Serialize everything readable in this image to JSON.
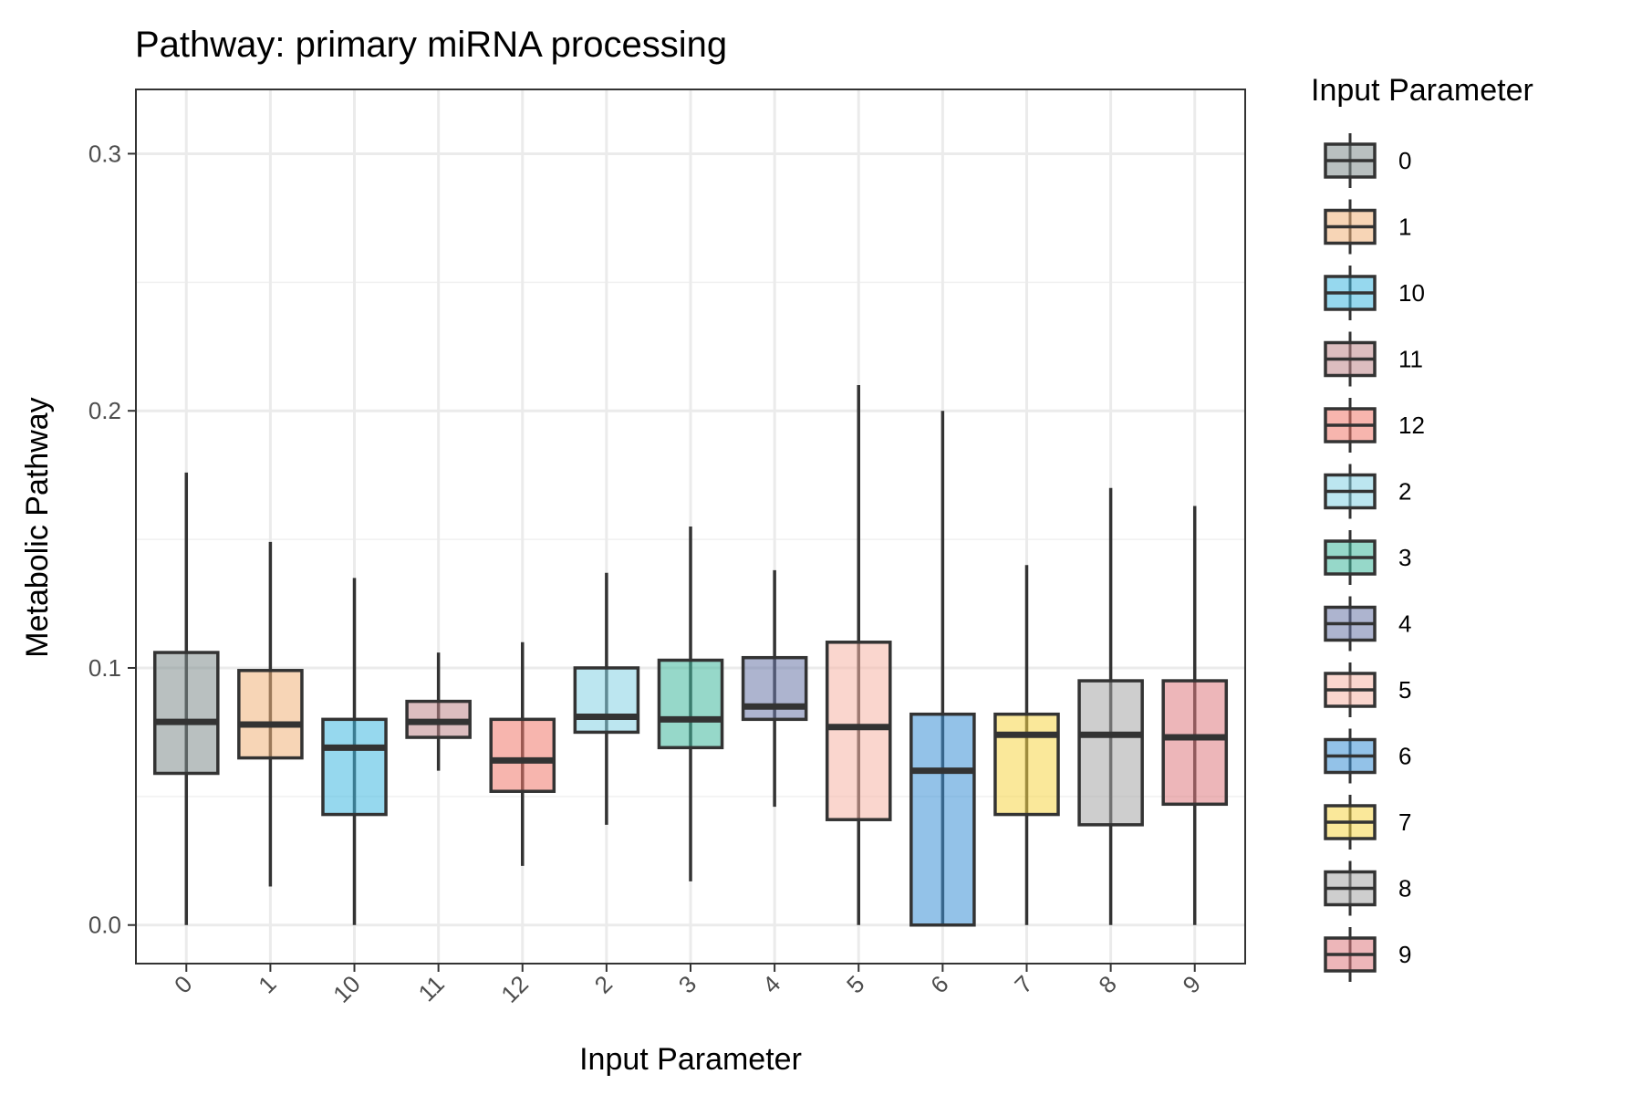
{
  "chart_data": {
    "type": "boxplot",
    "title": "Pathway: primary miRNA processing",
    "xlabel": "Input Parameter",
    "ylabel": "Metabolic Pathway",
    "ylim": [
      -0.015,
      0.325
    ],
    "yticks": [
      0.0,
      0.1,
      0.2,
      0.3
    ],
    "ytick_labels": [
      "0.0",
      "0.1",
      "0.2",
      "0.3"
    ],
    "grid": true,
    "legend": {
      "title": "Input Parameter",
      "position": "right"
    },
    "categories": [
      "0",
      "1",
      "10",
      "11",
      "12",
      "2",
      "3",
      "4",
      "5",
      "6",
      "7",
      "8",
      "9"
    ],
    "series": [
      {
        "name": "0",
        "color": "#7f8c8d",
        "min": 0.0,
        "q1": 0.059,
        "median": 0.079,
        "q3": 0.106,
        "max": 0.176
      },
      {
        "name": "1",
        "color": "#f0b27a",
        "min": 0.015,
        "q1": 0.065,
        "median": 0.078,
        "q3": 0.099,
        "max": 0.149
      },
      {
        "name": "10",
        "color": "#3fb8e0",
        "min": 0.0,
        "q1": 0.043,
        "median": 0.069,
        "q3": 0.08,
        "max": 0.135
      },
      {
        "name": "11",
        "color": "#c0868b",
        "min": 0.06,
        "q1": 0.073,
        "median": 0.079,
        "q3": 0.087,
        "max": 0.106
      },
      {
        "name": "12",
        "color": "#f1796b",
        "min": 0.023,
        "q1": 0.052,
        "median": 0.064,
        "q3": 0.08,
        "max": 0.11
      },
      {
        "name": "2",
        "color": "#85d1e3",
        "min": 0.039,
        "q1": 0.075,
        "median": 0.081,
        "q3": 0.1,
        "max": 0.137
      },
      {
        "name": "3",
        "color": "#3fb89c",
        "min": 0.017,
        "q1": 0.069,
        "median": 0.08,
        "q3": 0.103,
        "max": 0.155
      },
      {
        "name": "4",
        "color": "#6a77a8",
        "min": 0.046,
        "q1": 0.08,
        "median": 0.085,
        "q3": 0.104,
        "max": 0.138
      },
      {
        "name": "5",
        "color": "#f5b4a6",
        "min": 0.0,
        "q1": 0.041,
        "median": 0.077,
        "q3": 0.11,
        "max": 0.21
      },
      {
        "name": "6",
        "color": "#3a8fd6",
        "min": 0.0,
        "q1": 0.0,
        "median": 0.06,
        "q3": 0.082,
        "max": 0.2
      },
      {
        "name": "7",
        "color": "#f5d547",
        "min": 0.0,
        "q1": 0.043,
        "median": 0.074,
        "q3": 0.082,
        "max": 0.14
      },
      {
        "name": "8",
        "color": "#a5a5a5",
        "min": 0.0,
        "q1": 0.039,
        "median": 0.074,
        "q3": 0.095,
        "max": 0.17
      },
      {
        "name": "9",
        "color": "#de7a7f",
        "min": 0.0,
        "q1": 0.047,
        "median": 0.073,
        "q3": 0.095,
        "max": 0.163
      }
    ]
  }
}
